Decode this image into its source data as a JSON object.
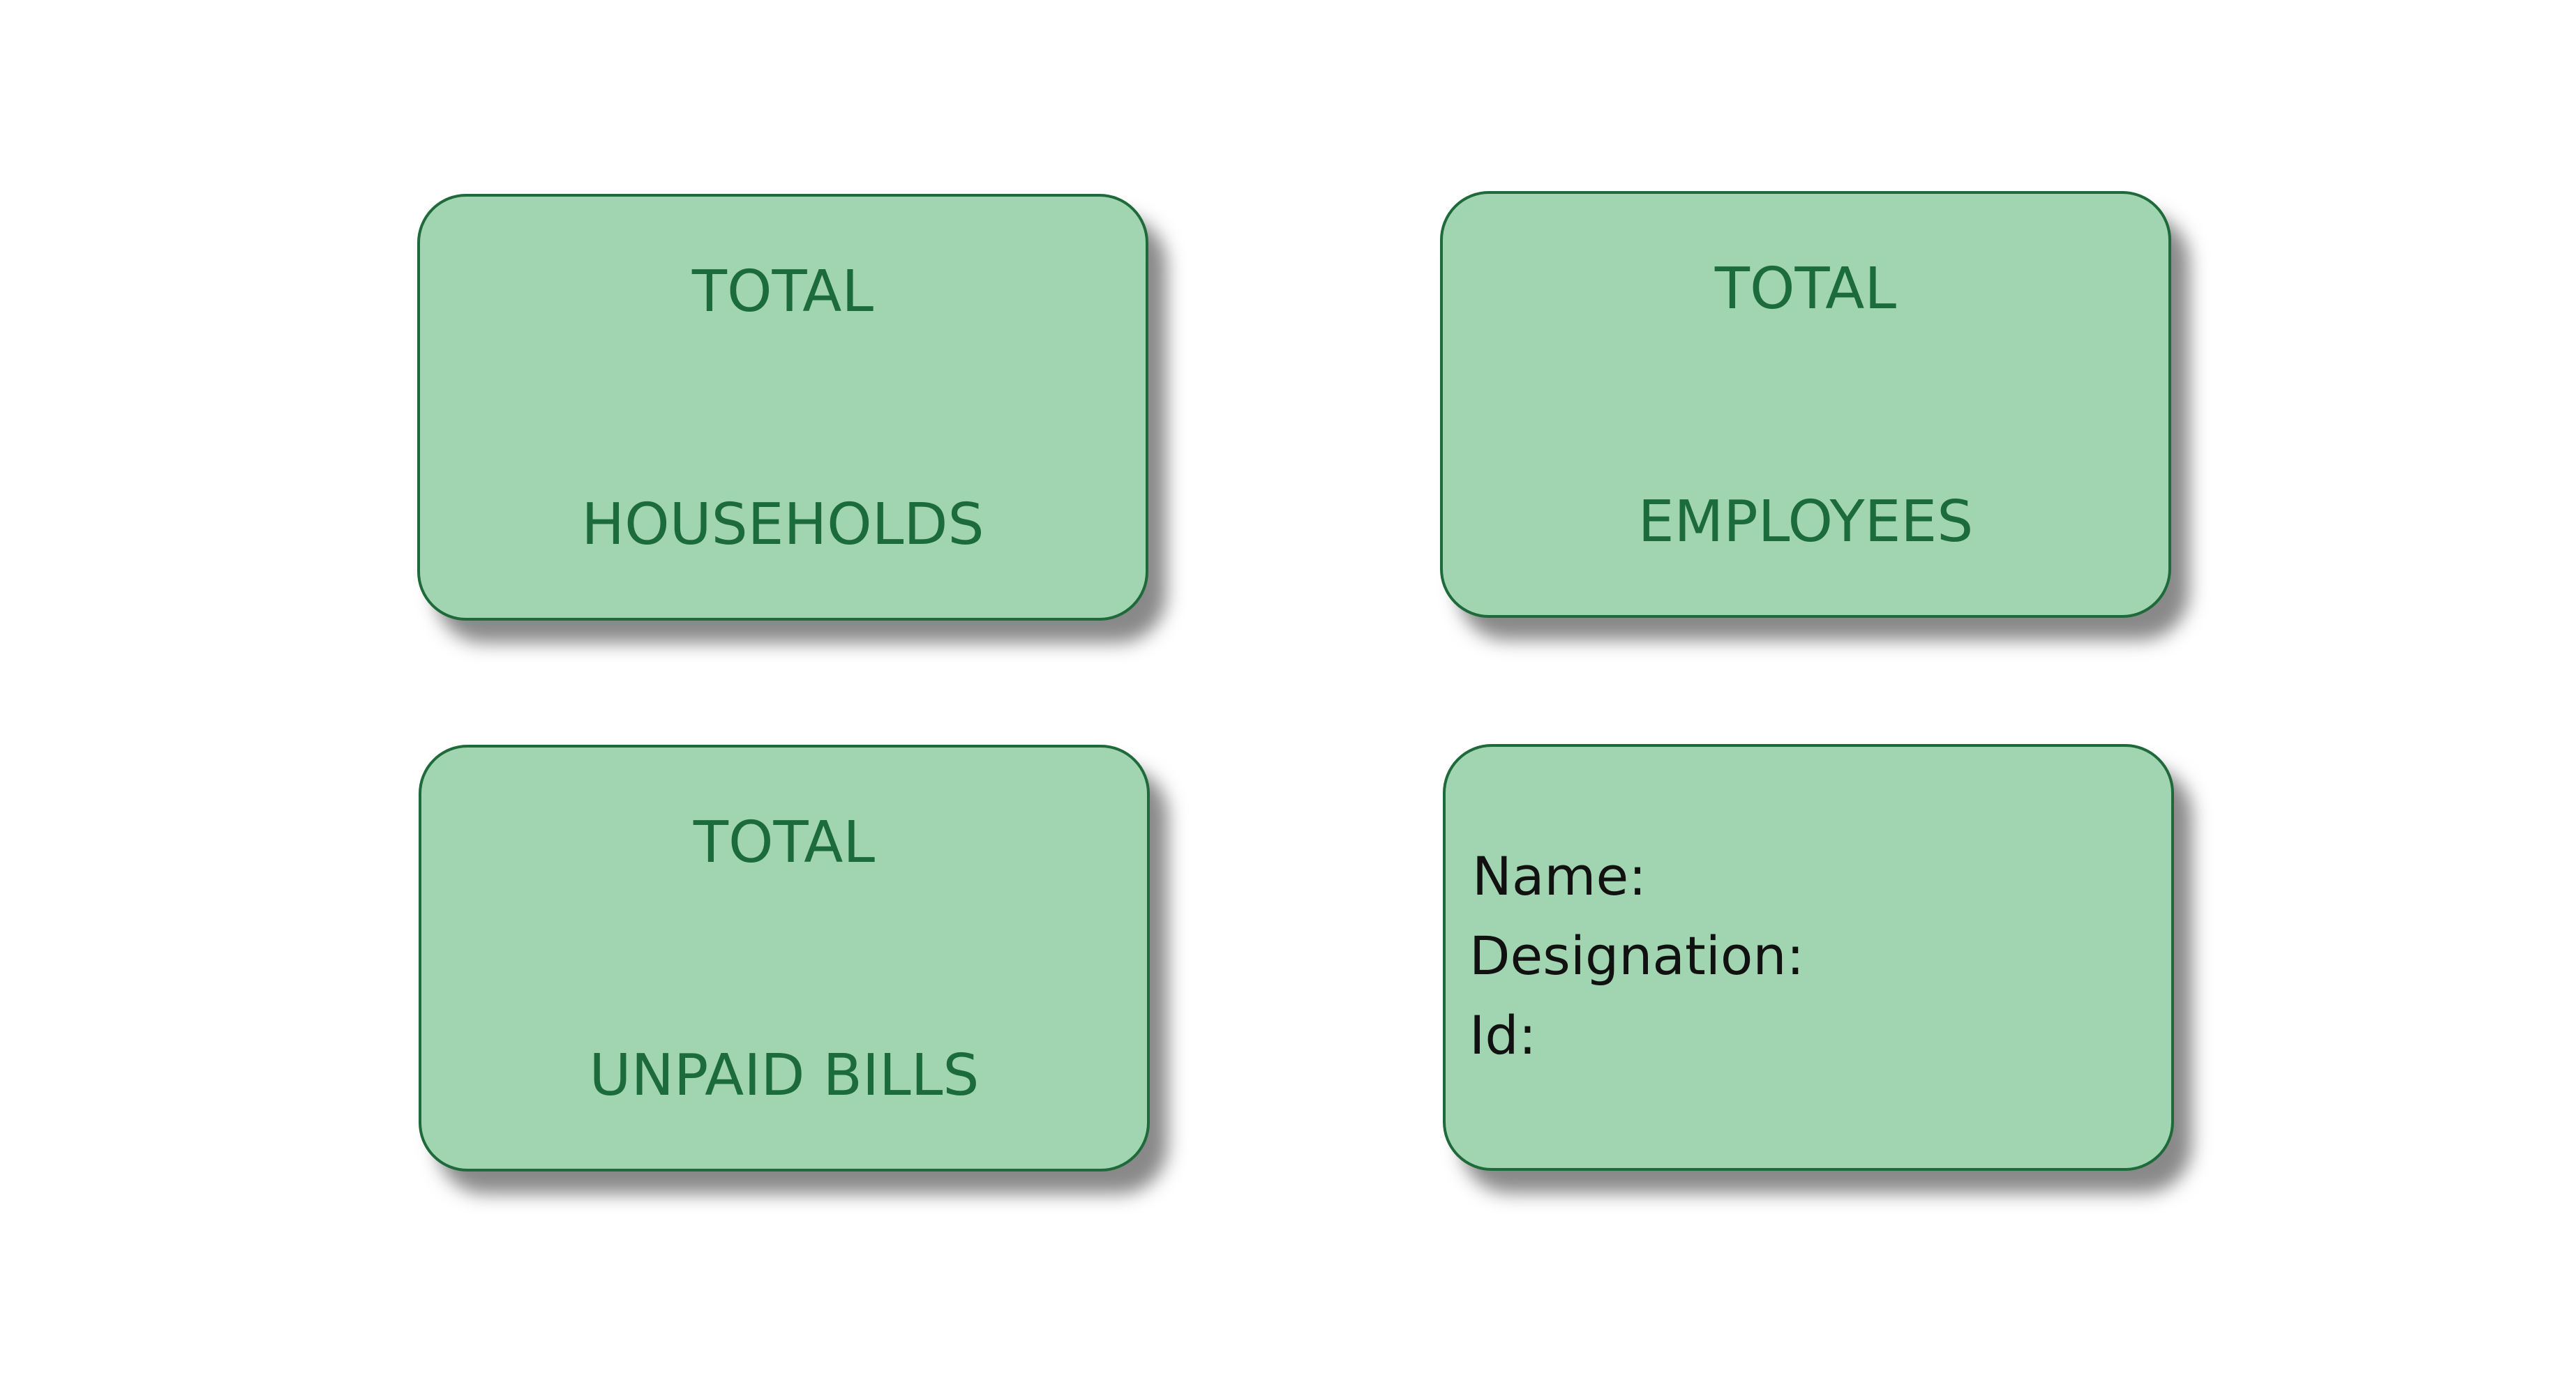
{
  "cards": {
    "households": {
      "top_label": "TOTAL",
      "bottom_label": "HOUSEHOLDS"
    },
    "employees": {
      "top_label": "TOTAL",
      "bottom_label": "EMPLOYEES"
    },
    "unpaid_bills": {
      "top_label": "TOTAL",
      "bottom_label": "UNPAID BILLS"
    },
    "profile": {
      "name_label": "Name:",
      "designation_label": "Designation:",
      "id_label": "Id:"
    }
  },
  "colors": {
    "card_fill": "#a1d4b0",
    "card_border": "#1e6a3a",
    "stat_text": "#1c6b3c",
    "profile_text": "#111111",
    "background": "#ffffff"
  }
}
